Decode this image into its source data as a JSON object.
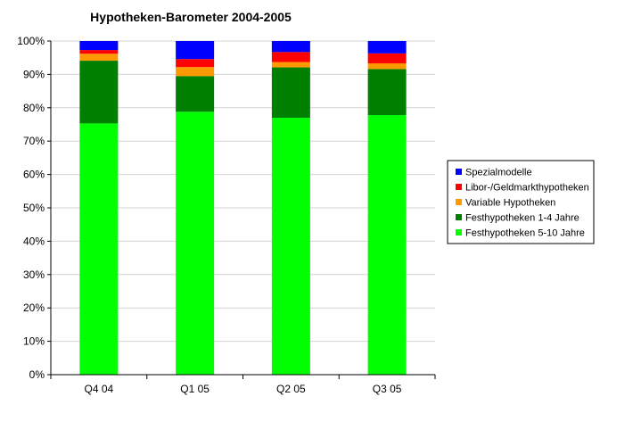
{
  "chart_data": {
    "type": "bar",
    "stacked": true,
    "percent_stacked": true,
    "title": "Hypotheken-Barometer 2004-2005",
    "xlabel": "",
    "ylabel": "",
    "categories": [
      "Q4 04",
      "Q1 05",
      "Q2 05",
      "Q3 05"
    ],
    "ylim": [
      0,
      100
    ],
    "y_ticks": [
      "0%",
      "10%",
      "20%",
      "30%",
      "40%",
      "50%",
      "60%",
      "70%",
      "80%",
      "90%",
      "100%"
    ],
    "grid": "horizontal",
    "legend_position": "right",
    "series": [
      {
        "name": "Festhypotheken 5-10 Jahre",
        "color": "#00ff00",
        "values": [
          75.3,
          78.8,
          77.0,
          77.8
        ]
      },
      {
        "name": "Festhypotheken 1-4 Jahre",
        "color": "#008000",
        "values": [
          18.8,
          10.7,
          15.1,
          13.8
        ]
      },
      {
        "name": "Variable Hypotheken",
        "color": "#ff9900",
        "values": [
          2.1,
          2.7,
          1.6,
          1.7
        ]
      },
      {
        "name": "Libor-/Geldmarkthypotheken",
        "color": "#ff0000",
        "values": [
          1.1,
          2.4,
          3.0,
          3.0
        ]
      },
      {
        "name": "Spezialmodelle",
        "color": "#0000ff",
        "values": [
          2.7,
          5.4,
          3.3,
          3.7
        ]
      }
    ],
    "legend_order": [
      "Spezialmodelle",
      "Libor-/Geldmarkthypotheken",
      "Variable Hypotheken",
      "Festhypotheken 1-4 Jahre",
      "Festhypotheken 5-10 Jahre"
    ]
  }
}
